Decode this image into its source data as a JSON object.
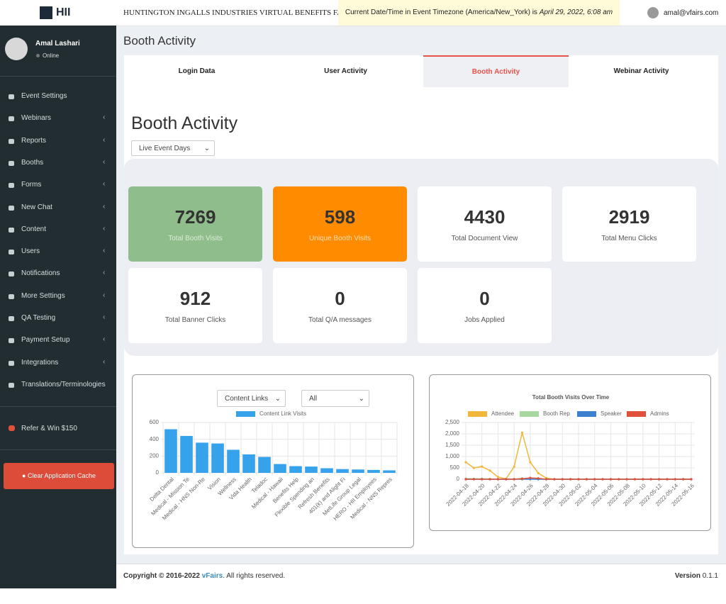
{
  "header": {
    "logo": "HII",
    "event_name": "HUNTINGTON INGALLS INDUSTRIES VIRTUAL BENEFITS FAIR",
    "datetime_prefix": "Current Date/Time in Event Timezone (America/New_York) is",
    "datetime": "April 29, 2022, 6:08 am",
    "user_email": "amal@vfairs.com"
  },
  "sidebar": {
    "user_name": "Amal Lashari",
    "status": "Online",
    "menu": [
      "Event Settings",
      "Webinars",
      "Reports",
      "Booths",
      "Forms",
      "New Chat",
      "Content",
      "Users",
      "Notifications",
      "More Settings",
      "QA Testing",
      "Payment Setup",
      "Integrations",
      "Translations/Terminologies"
    ],
    "refer": "Refer & Win $150",
    "clear_cache": "Clear Application Cache"
  },
  "page_title": "Booth Activity",
  "tabs": [
    "Login Data",
    "User Activity",
    "Booth Activity",
    "Webinar Activity"
  ],
  "section_title": "Booth Activity",
  "filter": "Live Event Days",
  "stats": [
    {
      "value": 7269,
      "label": "Total Booth Visits"
    },
    {
      "value": 598,
      "label": "Unique Booth Visits"
    },
    {
      "value": 4430,
      "label": "Total Document View"
    },
    {
      "value": 2919,
      "label": "Total Menu Clicks"
    },
    {
      "value": 912,
      "label": "Total Banner Clicks"
    },
    {
      "value": 0,
      "label": "Total Q/A messages"
    },
    {
      "value": 0,
      "label": "Jobs Applied"
    }
  ],
  "chart_data": [
    {
      "type": "bar",
      "filters": [
        "Content Links",
        "All"
      ],
      "categories": [
        "Delta Dental",
        "Medical - Mission Te",
        "Medical - HNS Non-Re",
        "Vision",
        "Wellness",
        "Vida Health",
        "Teladoc",
        "Medical - Hawaii",
        "Benefits Help",
        "Flexible Spending an",
        "Refresh Benefits",
        "401(k) and Alight Fi",
        "MetLife Group Legal",
        "HERO - HII Employees",
        "Medical - NNS Repres"
      ],
      "series": [
        {
          "name": "Content Link Visits",
          "color": "#36a2eb",
          "values": [
            520,
            440,
            360,
            350,
            275,
            220,
            190,
            105,
            80,
            75,
            55,
            45,
            40,
            35,
            30
          ]
        }
      ],
      "ylim": [
        0,
        600
      ],
      "yticks": [
        0,
        200,
        400,
        600
      ],
      "grid": true
    },
    {
      "type": "line",
      "title": "Total Booth Visits Over Time",
      "categories": [
        "2022-04-18",
        null,
        "2022-04-20",
        null,
        "2022-04-22",
        null,
        "2022-04-24",
        null,
        "2022-04-26",
        null,
        "2022-04-28",
        null,
        "2022-04-30",
        null,
        "2022-05-02",
        null,
        "2022-05-04",
        null,
        "2022-05-06",
        null,
        "2022-05-08",
        null,
        "2022-05-10",
        null,
        "2022-05-12",
        null,
        "2022-05-14",
        null,
        "2022-05-16"
      ],
      "series": [
        {
          "name": "Attendee",
          "color": "#f0b73b",
          "values": [
            750,
            500,
            560,
            380,
            100,
            20,
            550,
            2050,
            750,
            270,
            50,
            0,
            0,
            0,
            0,
            0,
            0,
            0,
            0,
            0,
            0,
            0,
            0,
            0,
            0,
            0,
            0,
            0,
            0
          ]
        },
        {
          "name": "Booth Rep",
          "color": "#a8d8a0",
          "values": [
            30,
            20,
            25,
            10,
            5,
            0,
            10,
            40,
            20,
            10,
            0,
            0,
            0,
            0,
            0,
            0,
            0,
            0,
            0,
            0,
            0,
            0,
            0,
            0,
            0,
            0,
            0,
            0,
            0
          ]
        },
        {
          "name": "Speaker",
          "color": "#3f7fd0",
          "values": [
            0,
            0,
            0,
            0,
            0,
            0,
            0,
            0,
            0,
            0,
            0,
            0,
            0,
            0,
            0,
            0,
            0,
            0,
            0,
            0,
            0,
            0,
            0,
            0,
            0,
            0,
            0,
            0,
            0
          ]
        },
        {
          "name": "Admins",
          "color": "#e0503a",
          "values": [
            0,
            0,
            0,
            0,
            0,
            0,
            0,
            20,
            60,
            40,
            0,
            0,
            0,
            0,
            0,
            0,
            0,
            0,
            0,
            0,
            0,
            0,
            0,
            0,
            0,
            0,
            0,
            0,
            0
          ]
        }
      ],
      "ylim": [
        0,
        2500
      ],
      "yticks": [
        0,
        500,
        {
          "value": 1000,
          "label": "1,000"
        },
        {
          "value": 1500,
          "label": "1,500"
        },
        {
          "value": 2000,
          "label": "2,000"
        },
        {
          "value": 2500,
          "label": "2,500"
        }
      ],
      "grid": true
    }
  ],
  "footer": {
    "copyright": "Copyright © 2016-2022",
    "brand": "vFairs",
    "rights": ". All rights reserved.",
    "version_label": "Version",
    "version": "0.1.1"
  }
}
